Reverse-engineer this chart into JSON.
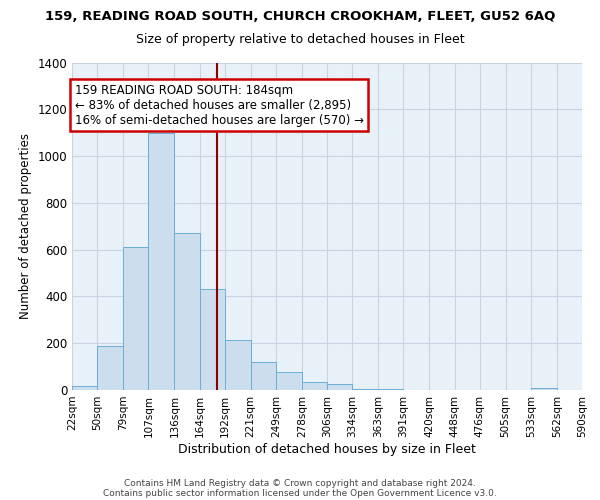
{
  "title": "159, READING ROAD SOUTH, CHURCH CROOKHAM, FLEET, GU52 6AQ",
  "subtitle": "Size of property relative to detached houses in Fleet",
  "xlabel": "Distribution of detached houses by size in Fleet",
  "ylabel": "Number of detached properties",
  "bar_color": "#ccdded",
  "bar_edge_color": "#6baed6",
  "bg_color": "#e8f0f8",
  "grid_color": "#c8d4e4",
  "vline_x": 184,
  "vline_color": "#8b0000",
  "annotation_title": "159 READING ROAD SOUTH: 184sqm",
  "annotation_line1": "← 83% of detached houses are smaller (2,895)",
  "annotation_line2": "16% of semi-detached houses are larger (570) →",
  "bin_edges": [
    22,
    50,
    79,
    107,
    136,
    164,
    192,
    221,
    249,
    278,
    306,
    334,
    363,
    391,
    420,
    448,
    476,
    505,
    533,
    562,
    590
  ],
  "bin_counts": [
    15,
    190,
    610,
    1100,
    670,
    430,
    215,
    120,
    75,
    35,
    25,
    5,
    3,
    2,
    1,
    1,
    0,
    0,
    10,
    0
  ],
  "ylim": [
    0,
    1400
  ],
  "yticks": [
    0,
    200,
    400,
    600,
    800,
    1000,
    1200,
    1400
  ],
  "footer1": "Contains HM Land Registry data © Crown copyright and database right 2024.",
  "footer2": "Contains public sector information licensed under the Open Government Licence v3.0."
}
